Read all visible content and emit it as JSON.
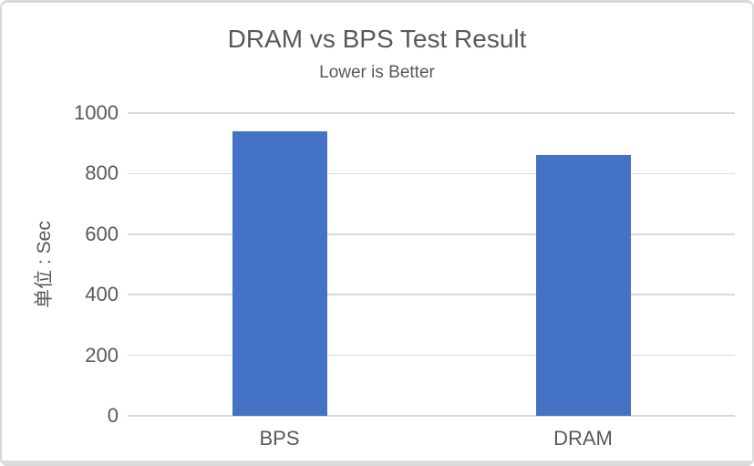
{
  "chart_data": {
    "type": "bar",
    "title": "DRAM vs BPS Test Result",
    "subtitle": "Lower is Better",
    "categories": [
      "BPS",
      "DRAM"
    ],
    "values": [
      940,
      860
    ],
    "xlabel": "",
    "ylabel": "单位 : Sec",
    "ylim": [
      0,
      1000
    ],
    "yticks": [
      0,
      200,
      400,
      600,
      800,
      1000
    ],
    "grid": true,
    "legend": false,
    "bar_color": "#4472C4",
    "gridline_color": "#D9D9D9",
    "axis_line_color": "#D9D9D9",
    "text_color": "#595959",
    "frame_border_color": "#D9D9D9",
    "frame_edge_strip_color": "#DCDCDC",
    "background_color": "#FFFFFF"
  }
}
